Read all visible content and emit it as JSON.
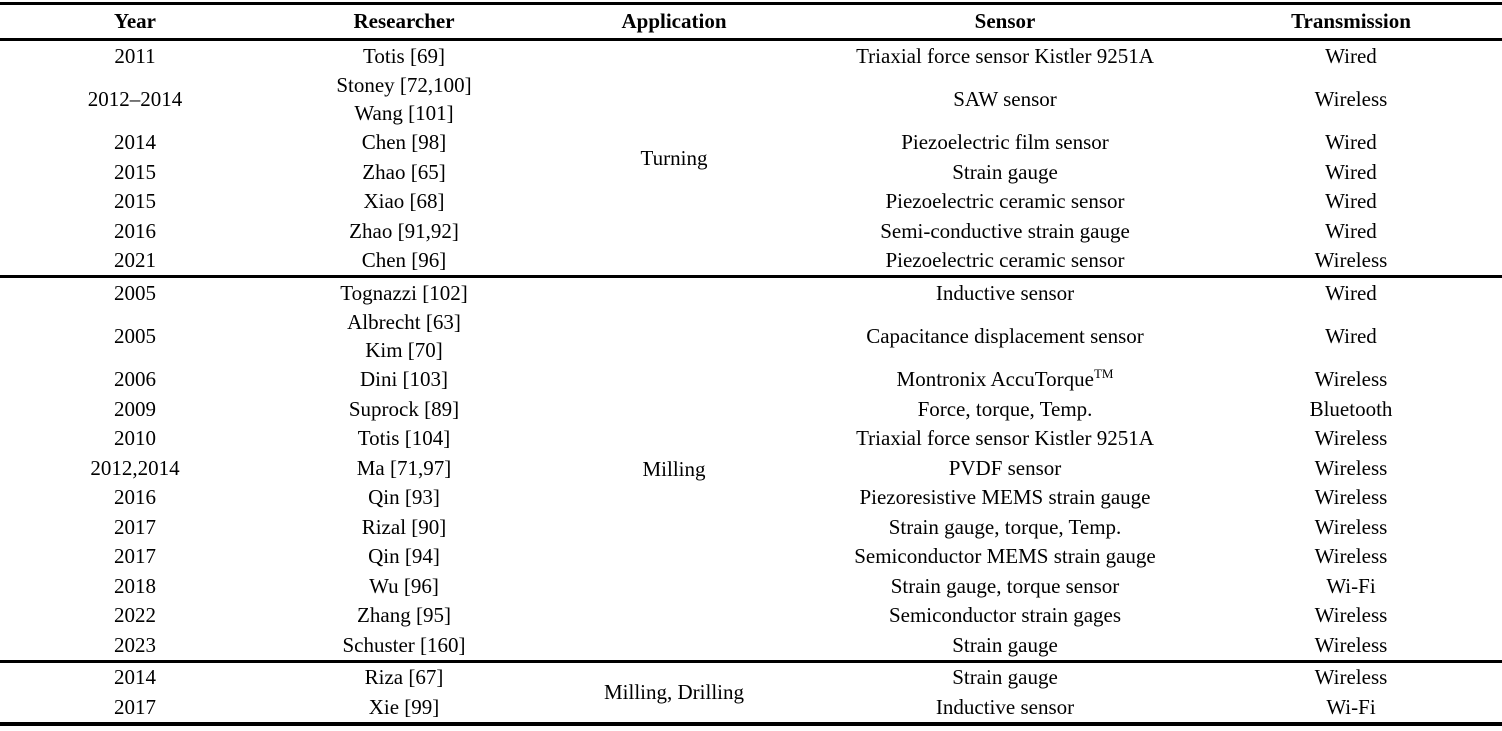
{
  "table": {
    "columns": [
      "Year",
      "Researcher",
      "Application",
      "Sensor",
      "Transmission"
    ],
    "sections": [
      {
        "application": "Turning",
        "rows": [
          {
            "year": "2011",
            "researchers": [
              "Totis [69]"
            ],
            "sensor": "Triaxial force sensor Kistler 9251A",
            "transmission": "Wired"
          },
          {
            "year": "2012–2014",
            "researchers": [
              "Stoney [72,100]",
              "Wang [101]"
            ],
            "sensor": "SAW sensor",
            "transmission": "Wireless"
          },
          {
            "year": "2014",
            "researchers": [
              "Chen [98]"
            ],
            "sensor": "Piezoelectric film sensor",
            "transmission": "Wired"
          },
          {
            "year": "2015",
            "researchers": [
              "Zhao [65]"
            ],
            "sensor": "Strain gauge",
            "transmission": "Wired"
          },
          {
            "year": "2015",
            "researchers": [
              "Xiao [68]"
            ],
            "sensor": "Piezoelectric ceramic sensor",
            "transmission": "Wired"
          },
          {
            "year": "2016",
            "researchers": [
              "Zhao [91,92]"
            ],
            "sensor": "Semi-conductive strain gauge",
            "transmission": "Wired"
          },
          {
            "year": "2021",
            "researchers": [
              "Chen [96]"
            ],
            "sensor": "Piezoelectric ceramic sensor",
            "transmission": "Wireless"
          }
        ]
      },
      {
        "application": "Milling",
        "rows": [
          {
            "year": "2005",
            "researchers": [
              "Tognazzi [102]"
            ],
            "sensor": "Inductive sensor",
            "transmission": "Wired"
          },
          {
            "year": "2005",
            "researchers": [
              "Albrecht [63]",
              "Kim [70]"
            ],
            "sensor": "Capacitance displacement sensor",
            "transmission": "Wired"
          },
          {
            "year": "2006",
            "researchers": [
              "Dini [103]"
            ],
            "sensor": "Montronix AccuTorque",
            "sensor_sup": "TM",
            "transmission": "Wireless"
          },
          {
            "year": "2009",
            "researchers": [
              "Suprock [89]"
            ],
            "sensor": "Force, torque, Temp.",
            "transmission": "Bluetooth"
          },
          {
            "year": "2010",
            "researchers": [
              "Totis [104]"
            ],
            "sensor": "Triaxial force sensor Kistler 9251A",
            "transmission": "Wireless"
          },
          {
            "year": "2012,2014",
            "researchers": [
              "Ma [71,97]"
            ],
            "sensor": "PVDF sensor",
            "transmission": "Wireless"
          },
          {
            "year": "2016",
            "researchers": [
              "Qin [93]"
            ],
            "sensor": "Piezoresistive MEMS strain gauge",
            "transmission": "Wireless"
          },
          {
            "year": "2017",
            "researchers": [
              "Rizal [90]"
            ],
            "sensor": "Strain gauge, torque, Temp.",
            "transmission": "Wireless"
          },
          {
            "year": "2017",
            "researchers": [
              "Qin [94]"
            ],
            "sensor": "Semiconductor MEMS strain gauge",
            "transmission": "Wireless"
          },
          {
            "year": "2018",
            "researchers": [
              "Wu [96]"
            ],
            "sensor": "Strain gauge, torque sensor",
            "transmission": "Wi-Fi"
          },
          {
            "year": "2022",
            "researchers": [
              "Zhang [95]"
            ],
            "sensor": "Semiconductor strain gages",
            "transmission": "Wireless"
          },
          {
            "year": "2023",
            "researchers": [
              "Schuster [160]"
            ],
            "sensor": "Strain gauge",
            "transmission": "Wireless"
          }
        ]
      },
      {
        "application": "Milling, Drilling",
        "rows": [
          {
            "year": "2014",
            "researchers": [
              "Riza [67]"
            ],
            "sensor": "Strain gauge",
            "transmission": "Wireless"
          },
          {
            "year": "2017",
            "researchers": [
              "Xie [99]"
            ],
            "sensor": "Inductive sensor",
            "transmission": "Wi-Fi"
          }
        ]
      }
    ]
  }
}
